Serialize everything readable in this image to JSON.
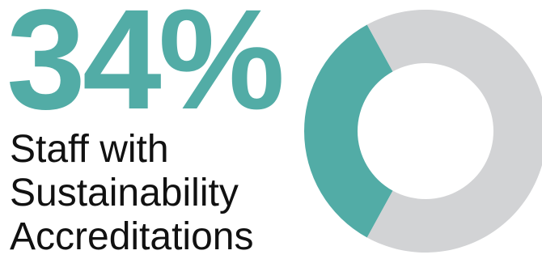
{
  "stat": {
    "value": "34%",
    "label_lines": [
      "Staff with",
      "Sustainability",
      "Accreditations"
    ]
  },
  "chart_data": {
    "type": "pie",
    "variant": "donut",
    "slices": [
      {
        "value": 34,
        "color": "#52aca6"
      },
      {
        "value": 66,
        "color": "#d2d3d5"
      }
    ]
  },
  "colors": {
    "accent": "#52aca6",
    "remainder": "#d2d3d5",
    "text": "#111111"
  }
}
